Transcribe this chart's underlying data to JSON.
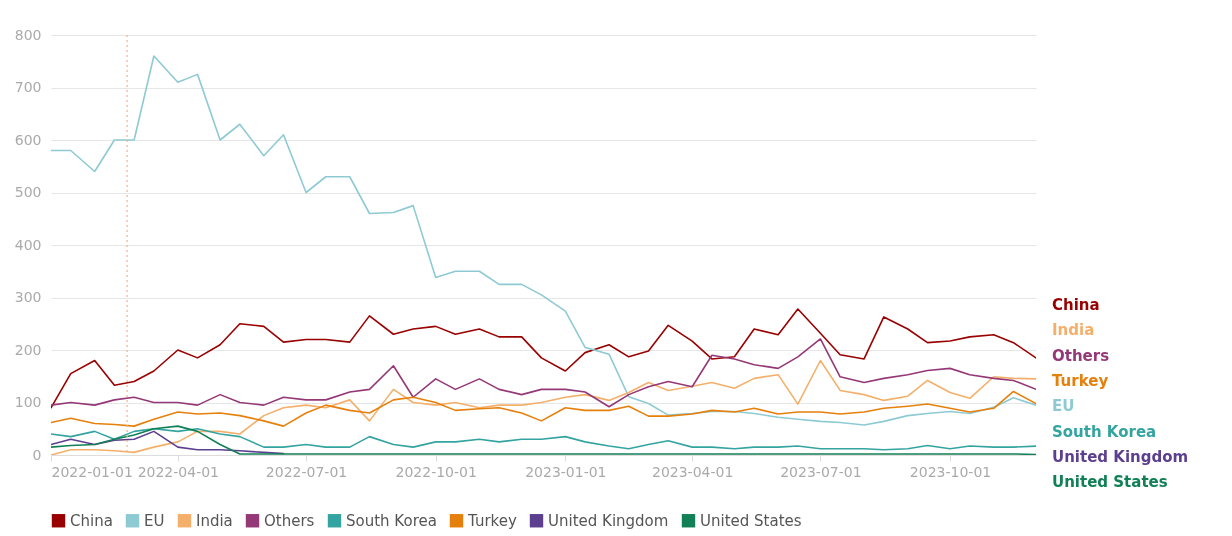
{
  "chart_data": {
    "type": "line",
    "x": [
      "2022-01-01",
      "2022-01-15",
      "2022-02-01",
      "2022-02-15",
      "2022-03-01",
      "2022-03-15",
      "2022-04-01",
      "2022-04-15",
      "2022-05-01",
      "2022-05-15",
      "2022-06-01",
      "2022-06-15",
      "2022-07-01",
      "2022-07-15",
      "2022-08-01",
      "2022-08-15",
      "2022-09-01",
      "2022-09-15",
      "2022-10-01",
      "2022-10-15",
      "2022-11-01",
      "2022-11-15",
      "2022-12-01",
      "2022-12-15",
      "2023-01-01",
      "2023-01-15",
      "2023-02-01",
      "2023-02-15",
      "2023-03-01",
      "2023-03-15",
      "2023-04-01",
      "2023-04-15",
      "2023-05-01",
      "2023-05-15",
      "2023-06-01",
      "2023-06-15",
      "2023-07-01",
      "2023-07-15",
      "2023-08-01",
      "2023-08-15",
      "2023-09-01",
      "2023-09-15",
      "2023-10-01",
      "2023-10-15",
      "2023-11-01",
      "2023-11-15",
      "2023-12-01"
    ],
    "series": [
      {
        "name": "China",
        "color": "#990000",
        "values": [
          90,
          155,
          180,
          133,
          140,
          160,
          200,
          185,
          210,
          250,
          245,
          215,
          220,
          220,
          215,
          265,
          230,
          240,
          245,
          230,
          240,
          225,
          225,
          185,
          160,
          195,
          210,
          187,
          198,
          247,
          217,
          183,
          187,
          240,
          229,
          278,
          232,
          191,
          183,
          263,
          240,
          214,
          217,
          225,
          229,
          214,
          185
        ]
      },
      {
        "name": "EU",
        "color": "#8ecad3",
        "values": [
          580,
          580,
          540,
          600,
          600,
          760,
          710,
          725,
          600,
          630,
          570,
          610,
          500,
          530,
          530,
          460,
          462,
          475,
          338,
          350,
          350,
          325,
          325,
          305,
          274,
          205,
          192,
          111,
          98,
          76,
          79,
          83,
          83,
          79,
          72,
          68,
          64,
          62,
          57,
          64,
          75,
          79,
          83,
          79,
          91,
          109,
          95
        ]
      },
      {
        "name": "India",
        "color": "#f4b06b",
        "values": [
          0,
          10,
          10,
          8,
          5,
          15,
          25,
          45,
          45,
          40,
          75,
          90,
          95,
          90,
          105,
          65,
          125,
          100,
          95,
          100,
          90,
          95,
          95,
          100,
          110,
          115,
          104,
          119,
          138,
          123,
          131,
          138,
          127,
          146,
          153,
          97,
          180,
          123,
          115,
          104,
          112,
          142,
          119,
          108,
          149,
          146,
          145
        ]
      },
      {
        "name": "Others",
        "color": "#953877",
        "values": [
          95,
          100,
          95,
          105,
          110,
          100,
          100,
          95,
          115,
          100,
          95,
          110,
          105,
          105,
          120,
          125,
          170,
          110,
          145,
          125,
          145,
          125,
          115,
          125,
          125,
          120,
          92,
          115,
          130,
          140,
          130,
          190,
          183,
          172,
          165,
          187,
          221,
          149,
          138,
          146,
          153,
          161,
          165,
          153,
          146,
          142,
          125
        ]
      },
      {
        "name": "South Korea",
        "color": "#34a4a0",
        "values": [
          40,
          35,
          45,
          30,
          45,
          50,
          45,
          50,
          40,
          35,
          15,
          15,
          20,
          15,
          15,
          35,
          20,
          15,
          25,
          25,
          30,
          25,
          30,
          30,
          35,
          25,
          17,
          12,
          20,
          27,
          15,
          15,
          12,
          15,
          15,
          17,
          12,
          12,
          12,
          10,
          12,
          18,
          12,
          17,
          15,
          15,
          17
        ]
      },
      {
        "name": "Turkey",
        "color": "#e6800c",
        "values": [
          62,
          70,
          60,
          58,
          55,
          68,
          82,
          78,
          80,
          75,
          65,
          55,
          80,
          95,
          85,
          80,
          105,
          110,
          100,
          85,
          88,
          90,
          80,
          65,
          90,
          85,
          85,
          93,
          74,
          74,
          78,
          85,
          82,
          89,
          78,
          82,
          82,
          78,
          82,
          89,
          93,
          97,
          89,
          82,
          89,
          121,
          98
        ]
      },
      {
        "name": "United Kingdom",
        "color": "#5c3f8f",
        "values": [
          20,
          30,
          20,
          28,
          30,
          45,
          15,
          10,
          10,
          8,
          5,
          3,
          null,
          null,
          null,
          null,
          null,
          null,
          null,
          null,
          null,
          null,
          null,
          null,
          null,
          null,
          null,
          null,
          null,
          null,
          null,
          null,
          null,
          null,
          null,
          null,
          null,
          null,
          null,
          null,
          null,
          null,
          null,
          null,
          null,
          null,
          null
        ]
      },
      {
        "name": "United States",
        "color": "#118056",
        "values": [
          15,
          18,
          20,
          30,
          38,
          50,
          55,
          45,
          20,
          2,
          2,
          2,
          2,
          2,
          2,
          2,
          2,
          2,
          2,
          2,
          2,
          2,
          2,
          2,
          2,
          2,
          2,
          2,
          2,
          2,
          2,
          2,
          2,
          2,
          2,
          2,
          2,
          2,
          2,
          2,
          2,
          2,
          2,
          2,
          2,
          2,
          1
        ]
      }
    ],
    "xlim": [
      "2022-01-01",
      "2023-12-01"
    ],
    "xticks": [
      "2022-01-01",
      "2022-04-01",
      "2022-07-01",
      "2022-10-01",
      "2023-01-01",
      "2023-04-01",
      "2023-07-01",
      "2023-10-01"
    ],
    "ylim": [
      0,
      800
    ],
    "yticks": [
      0,
      100,
      200,
      300,
      400,
      500,
      600,
      700,
      800
    ],
    "ref_lines": [
      {
        "axis": "x",
        "value": "2022-02-24",
        "color": "#f4b183",
        "line_style": "dotted"
      }
    ],
    "grid": "y",
    "legend": "bottom",
    "line_style": "solid",
    "marker": "none"
  }
}
